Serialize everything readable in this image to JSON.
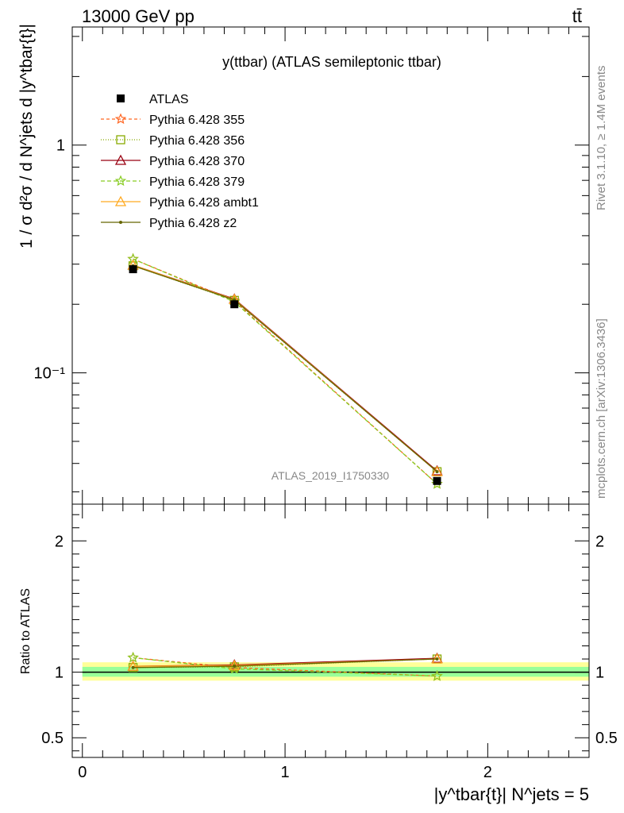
{
  "header": {
    "left": "13000 GeV pp",
    "right": "tt̄"
  },
  "side_labels": {
    "rivet": "Rivet 3.1.10, ≥ 1.4M events",
    "mcplots": "mcplots.cern.ch [arXiv:1306.3436]"
  },
  "chart_data": [
    {
      "type": "line",
      "title": "y(ttbar) (ATLAS semileptonic ttbar)",
      "ylabel": "1 / σ d²σ / d N^jets d |y^tbar{t}|",
      "yscale": "log",
      "ylim": [
        0.0265,
        3.3
      ],
      "xlim": [
        -0.05,
        2.5
      ],
      "watermark": "ATLAS_2019_I1750330",
      "yticks": [
        {
          "value": 1,
          "label": "1"
        },
        {
          "value": 0.1,
          "label": "10⁻¹"
        }
      ],
      "x": [
        0.25,
        0.75,
        1.75
      ],
      "x_edges": [
        [
          0,
          0.5
        ],
        [
          0.5,
          1.0
        ],
        [
          1.0,
          2.5
        ]
      ],
      "series": [
        {
          "name": "ATLAS",
          "color": "#000000",
          "marker": "square",
          "dash": "none",
          "values": [
            0.285,
            0.2,
            0.0335
          ]
        },
        {
          "name": "Pythia 6.428 355",
          "color": "#ff6622",
          "marker": "star",
          "dash": "4,3",
          "values": [
            0.316,
            0.207,
            0.0325
          ]
        },
        {
          "name": "Pythia 6.428 356",
          "color": "#88aa00",
          "marker": "open-square",
          "dash": "1,2",
          "values": [
            0.295,
            0.208,
            0.0368
          ]
        },
        {
          "name": "Pythia 6.428 370",
          "color": "#990011",
          "marker": "open-triangle",
          "dash": "none",
          "values": [
            0.297,
            0.211,
            0.0371
          ]
        },
        {
          "name": "Pythia 6.428 379",
          "color": "#88cc22",
          "marker": "star",
          "dash": "5,3",
          "values": [
            0.316,
            0.205,
            0.0325
          ]
        },
        {
          "name": "Pythia 6.428 ambt1",
          "color": "#ffaa22",
          "marker": "open-triangle",
          "dash": "none",
          "values": [
            0.297,
            0.21,
            0.0368
          ]
        },
        {
          "name": "Pythia 6.428 z2",
          "color": "#666600",
          "marker": "dot",
          "dash": "none",
          "values": [
            0.295,
            0.209,
            0.0368
          ]
        }
      ]
    },
    {
      "type": "line",
      "ylabel": "Ratio to ATLAS",
      "xlabel": "|y^tbar{t}| N^jets = 5",
      "ylim": [
        0.35,
        2.28
      ],
      "xlim": [
        -0.05,
        2.5
      ],
      "xticks": [
        {
          "value": 0,
          "label": "0"
        },
        {
          "value": 1,
          "label": "1"
        },
        {
          "value": 2,
          "label": "2"
        }
      ],
      "yticks": [
        {
          "value": 0.5,
          "label": "0.5"
        },
        {
          "value": 1,
          "label": "1"
        },
        {
          "value": 2,
          "label": "2"
        }
      ],
      "band_yellow": [
        0.935,
        1.075
      ],
      "band_green": [
        0.965,
        1.04
      ],
      "x": [
        0.25,
        0.75,
        1.75
      ],
      "series": [
        {
          "name": "Pythia 6.428 355",
          "values": [
            1.11,
            1.035,
            0.97
          ]
        },
        {
          "name": "Pythia 6.428 356",
          "values": [
            1.035,
            1.04,
            1.1
          ]
        },
        {
          "name": "Pythia 6.428 370",
          "values": [
            1.045,
            1.055,
            1.105
          ]
        },
        {
          "name": "Pythia 6.428 379",
          "values": [
            1.11,
            1.025,
            0.97
          ]
        },
        {
          "name": "Pythia 6.428 ambt1",
          "values": [
            1.045,
            1.05,
            1.1
          ]
        },
        {
          "name": "Pythia 6.428 z2",
          "values": [
            1.035,
            1.045,
            1.1
          ]
        }
      ]
    }
  ]
}
